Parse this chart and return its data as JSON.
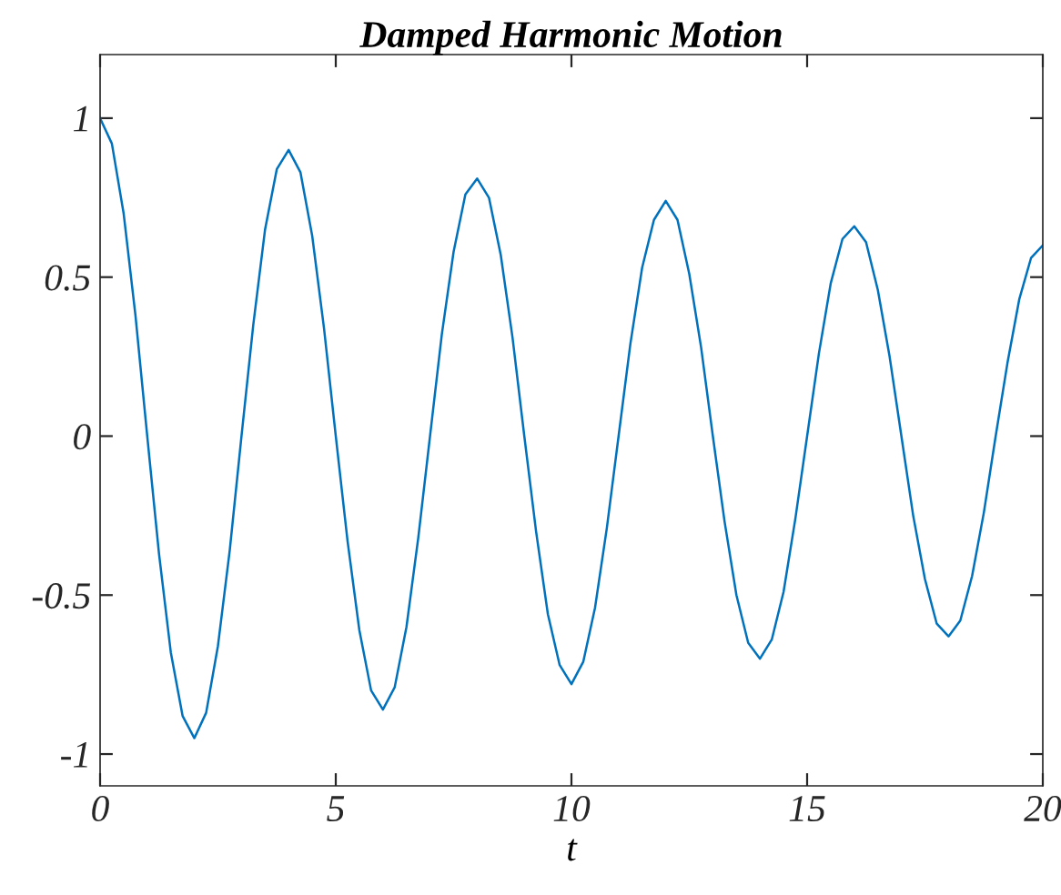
{
  "chart_data": {
    "type": "line",
    "title": "Damped Harmonic Motion",
    "xlabel": "t",
    "x": [
      0,
      0.25,
      0.5,
      0.75,
      1,
      1.25,
      1.5,
      1.75,
      2,
      2.25,
      2.5,
      2.75,
      3,
      3.25,
      3.5,
      3.75,
      4,
      4.25,
      4.5,
      4.75,
      5,
      5.25,
      5.5,
      5.75,
      6,
      6.25,
      6.5,
      6.75,
      7,
      7.25,
      7.5,
      7.75,
      8,
      8.25,
      8.5,
      8.75,
      9,
      9.25,
      9.5,
      9.75,
      10,
      10.25,
      10.5,
      10.75,
      11,
      11.25,
      11.5,
      11.75,
      12,
      12.25,
      12.5,
      12.75,
      13,
      13.25,
      13.5,
      13.75,
      14,
      14.25,
      14.5,
      14.75,
      15,
      15.25,
      15.5,
      15.75,
      16,
      16.25,
      16.5,
      16.75,
      17,
      17.25,
      17.5,
      17.75,
      18,
      18.25,
      18.5,
      18.75,
      19,
      19.25,
      19.5,
      19.75,
      20
    ],
    "series": [
      {
        "color": "#0072bd",
        "values": [
          1.0,
          0.92,
          0.7,
          0.38,
          0,
          -0.37,
          -0.68,
          -0.88,
          -0.95,
          -0.87,
          -0.66,
          -0.36,
          0,
          0.35,
          0.65,
          0.84,
          0.9,
          0.83,
          0.63,
          0.34,
          0,
          -0.33,
          -0.61,
          -0.8,
          -0.86,
          -0.79,
          -0.6,
          -0.32,
          0,
          0.32,
          0.58,
          0.76,
          0.81,
          0.75,
          0.57,
          0.31,
          0,
          -0.3,
          -0.56,
          -0.72,
          -0.78,
          -0.71,
          -0.54,
          -0.29,
          0,
          0.29,
          0.53,
          0.68,
          0.74,
          0.68,
          0.51,
          0.28,
          0,
          -0.27,
          -0.5,
          -0.65,
          -0.7,
          -0.64,
          -0.49,
          -0.26,
          0,
          0.26,
          0.48,
          0.62,
          0.66,
          0.61,
          0.46,
          0.25,
          0,
          -0.25,
          -0.45,
          -0.59,
          -0.63,
          -0.58,
          -0.44,
          -0.24,
          0,
          0.23,
          0.43,
          0.56,
          0.6
        ]
      }
    ],
    "xlim": [
      0,
      20
    ],
    "xticks": [
      0,
      5,
      10,
      15,
      20
    ],
    "ylim": [
      -1.1,
      1.2
    ],
    "yticks": [
      -1,
      -0.5,
      0,
      0.5,
      1
    ],
    "grid": false,
    "legend": false,
    "marker": "none",
    "line_style": "solid"
  }
}
